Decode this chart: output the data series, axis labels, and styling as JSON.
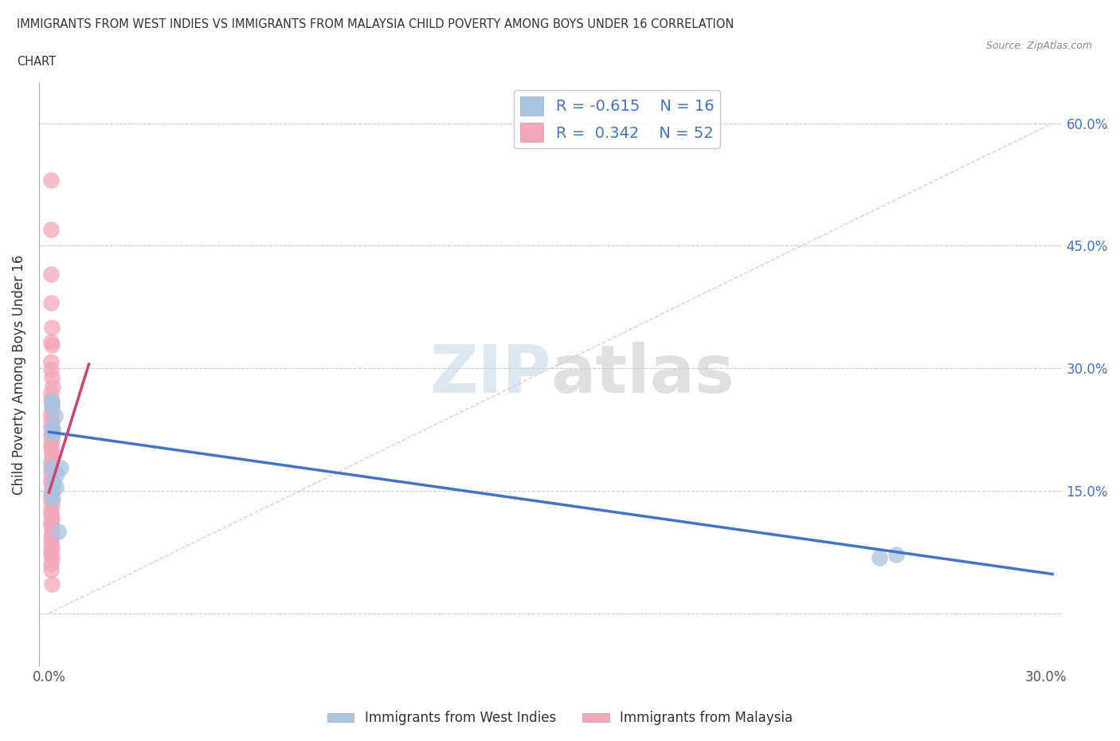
{
  "title_line1": "IMMIGRANTS FROM WEST INDIES VS IMMIGRANTS FROM MALAYSIA CHILD POVERTY AMONG BOYS UNDER 16 CORRELATION",
  "title_line2": "CHART",
  "source": "Source: ZipAtlas.com",
  "ylabel": "Child Poverty Among Boys Under 16",
  "legend_label_1": "Immigrants from West Indies",
  "legend_label_2": "Immigrants from Malaysia",
  "r1": -0.615,
  "n1": 16,
  "r2": 0.342,
  "n2": 52,
  "color_blue_scatter": "#a8c4e0",
  "color_blue_line": "#4472c4",
  "color_pink_scatter": "#f4a7b9",
  "color_pink_line": "#d04070",
  "watermark_zip": "#c8d8e8",
  "watermark_atlas": "#c8c8c8",
  "background_color": "#ffffff",
  "xlim_min": -0.003,
  "xlim_max": 0.305,
  "ylim_min": -0.065,
  "ylim_max": 0.65,
  "wi_x": [
    0.0008,
    0.001,
    0.0012,
    0.0008,
    0.0009,
    0.0018,
    0.0007,
    0.0035,
    0.0022,
    0.0013,
    0.0009,
    0.002,
    0.0012,
    0.25,
    0.255,
    0.0028
  ],
  "wi_y": [
    0.225,
    0.225,
    0.22,
    0.255,
    0.26,
    0.242,
    0.178,
    0.178,
    0.17,
    0.16,
    0.148,
    0.155,
    0.14,
    0.068,
    0.072,
    0.1
  ],
  "mal_x": [
    0.0005,
    0.0007,
    0.0006,
    0.0005,
    0.0009,
    0.0006,
    0.0008,
    0.0006,
    0.0005,
    0.0008,
    0.001,
    0.0005,
    0.0006,
    0.0009,
    0.0008,
    0.0005,
    0.0006,
    0.0008,
    0.0005,
    0.0009,
    0.0007,
    0.0008,
    0.0005,
    0.0006,
    0.0008,
    0.0009,
    0.0006,
    0.0008,
    0.0005,
    0.0006,
    0.0005,
    0.0008,
    0.0006,
    0.0005,
    0.0007,
    0.0009,
    0.0005,
    0.0007,
    0.0008,
    0.0005,
    0.0007,
    0.0008,
    0.0009,
    0.0006,
    0.0005,
    0.0008,
    0.0007,
    0.0005,
    0.0008,
    0.0007,
    0.0005,
    0.0009
  ],
  "mal_y": [
    0.53,
    0.47,
    0.415,
    0.38,
    0.35,
    0.332,
    0.328,
    0.308,
    0.298,
    0.288,
    0.278,
    0.27,
    0.262,
    0.255,
    0.25,
    0.245,
    0.238,
    0.232,
    0.228,
    0.222,
    0.218,
    0.212,
    0.207,
    0.202,
    0.197,
    0.192,
    0.185,
    0.178,
    0.172,
    0.165,
    0.16,
    0.153,
    0.148,
    0.143,
    0.138,
    0.133,
    0.127,
    0.122,
    0.117,
    0.112,
    0.108,
    0.102,
    0.098,
    0.093,
    0.087,
    0.082,
    0.077,
    0.072,
    0.067,
    0.06,
    0.053,
    0.036
  ],
  "blue_line_x0": 0.0,
  "blue_line_y0": 0.222,
  "blue_line_x1": 0.302,
  "blue_line_y1": 0.048,
  "pink_line_x0": 0.0,
  "pink_line_y0": 0.148,
  "pink_line_x1": 0.012,
  "pink_line_y1": 0.305,
  "diag_line_x0": 0.0,
  "diag_line_y0": 0.0,
  "diag_line_x1": 0.302,
  "diag_line_y1": 0.6
}
